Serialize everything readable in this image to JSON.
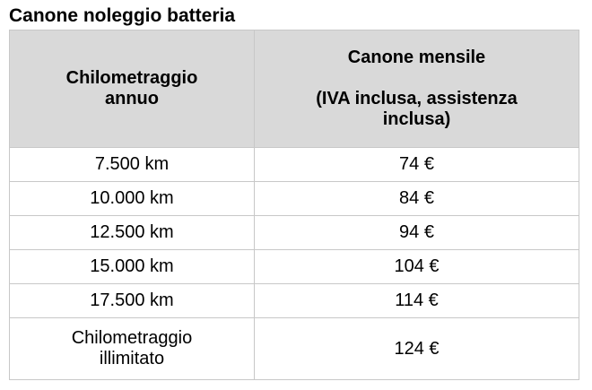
{
  "title": "Canone noleggio batteria",
  "table": {
    "columns": [
      {
        "lines": [
          "Chilometraggio annuo"
        ]
      },
      {
        "lines": [
          "Canone mensile",
          "(IVA inclusa, assistenza inclusa)"
        ]
      }
    ],
    "rows": [
      [
        "7.500 km",
        "74 €"
      ],
      [
        "10.000 km",
        "84 €"
      ],
      [
        "12.500 km",
        "94 €"
      ],
      [
        "15.000 km",
        "104 €"
      ],
      [
        "17.500 km",
        "114 €"
      ],
      [
        "Chilometraggio illimitato",
        "124 €"
      ]
    ]
  }
}
